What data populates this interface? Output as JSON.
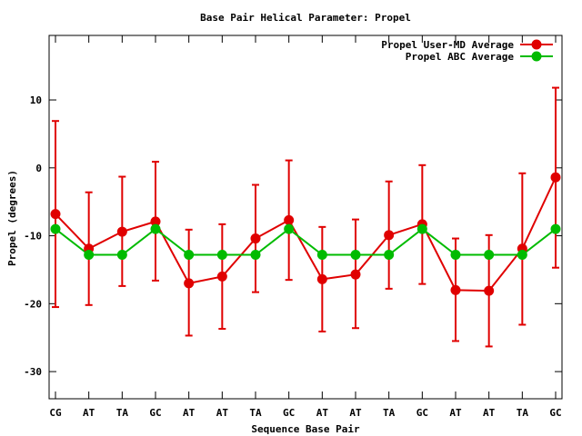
{
  "chart_data": {
    "type": "line",
    "title": "Base Pair Helical Parameter: Propel",
    "xlabel": "Sequence Base Pair",
    "ylabel": "Propel (degrees)",
    "categories": [
      "CG",
      "AT",
      "TA",
      "GC",
      "AT",
      "AT",
      "TA",
      "GC",
      "AT",
      "AT",
      "TA",
      "GC",
      "AT",
      "AT",
      "TA",
      "GC"
    ],
    "ylim": [
      -34,
      19.5
    ],
    "yticks": [
      -30,
      -20,
      -10,
      0,
      10
    ],
    "ytick_labels": [
      "-30",
      "-20",
      "-10",
      "0",
      "10"
    ],
    "legend_position": "top-right",
    "grid": false,
    "series": [
      {
        "name": "Propel User-MD Average",
        "color": "#e00000",
        "values": [
          -6.8,
          -11.9,
          -9.4,
          -7.9,
          -17.0,
          -16.0,
          -10.4,
          -7.7,
          -16.4,
          -15.7,
          -9.9,
          -8.3,
          -18.0,
          -18.1,
          -11.9,
          -1.4
        ],
        "error_low": [
          -20.5,
          -20.2,
          -17.4,
          -16.6,
          -24.7,
          -23.7,
          -18.3,
          -16.5,
          -24.1,
          -23.6,
          -17.8,
          -17.1,
          -25.5,
          -26.3,
          -23.1,
          -14.7
        ],
        "error_high": [
          6.9,
          -3.6,
          -1.3,
          0.9,
          -9.1,
          -8.3,
          -2.5,
          1.1,
          -8.7,
          -7.6,
          -2.0,
          0.4,
          -10.4,
          -9.9,
          -0.8,
          11.8
        ]
      },
      {
        "name": "Propel ABC Average",
        "color": "#00bb00",
        "values": [
          -9.0,
          -12.8,
          -12.8,
          -9.0,
          -12.8,
          -12.8,
          -12.8,
          -9.0,
          -12.8,
          -12.8,
          -12.8,
          -9.0,
          -12.8,
          -12.8,
          -12.8,
          -9.0
        ]
      }
    ]
  }
}
